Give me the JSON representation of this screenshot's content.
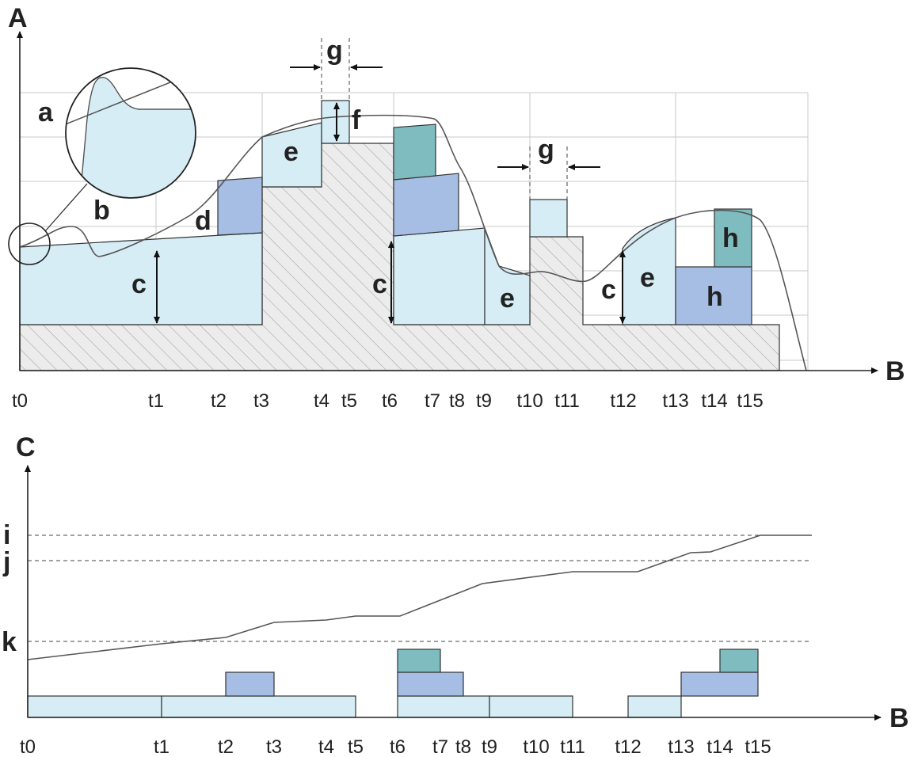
{
  "top_chart": {
    "y_axis_label": "A",
    "x_axis_label": "B",
    "ticks": [
      "t0",
      "t1",
      "t2",
      "t3",
      "t4",
      "t5",
      "t6",
      "t7",
      "t8",
      "t9",
      "t10",
      "t11",
      "t12",
      "t13",
      "t14",
      "t15"
    ],
    "callouts": {
      "a": "a",
      "b": "b",
      "c1": "c",
      "c2": "c",
      "c3": "c",
      "d": "d",
      "e1": "e",
      "e2": "e",
      "e3": "e",
      "f": "f",
      "g1": "g",
      "g2": "g",
      "h1": "h",
      "h2": "h"
    }
  },
  "bottom_chart": {
    "y_axis_label": "C",
    "x_axis_label": "B",
    "ticks": [
      "t0",
      "t1",
      "t2",
      "t3",
      "t4",
      "t5",
      "t6",
      "t7",
      "t8",
      "t9",
      "t10",
      "t11",
      "t12",
      "t13",
      "t14",
      "t15"
    ],
    "levels": {
      "i": "i",
      "j": "j",
      "k": "k"
    }
  },
  "colors": {
    "light_blue": "#d6edf5",
    "mid_blue": "#a6bde4",
    "teal": "#7fbcc0",
    "hatch_bg": "#ececec",
    "hatch_line": "#9a9a9a"
  }
}
